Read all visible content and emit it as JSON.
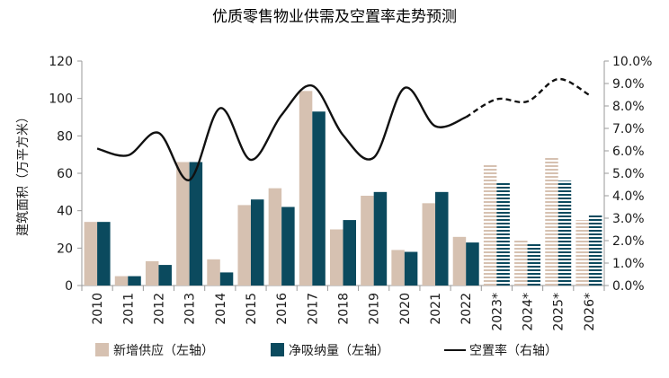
{
  "chart_data": {
    "type": "bar",
    "title": "优质零售物业供需及空置率走势预测",
    "ylabel": "建筑面积（万平方米）",
    "y2label": "",
    "categories": [
      "2010",
      "2011",
      "2012",
      "2013",
      "2014",
      "2015",
      "2016",
      "2017",
      "2018",
      "2019",
      "2020",
      "2021",
      "2022",
      "2023*",
      "2024*",
      "2025*",
      "2026*"
    ],
    "forecast_from_index": 13,
    "ylim": [
      0,
      120
    ],
    "yticks": [
      "0",
      "20",
      "40",
      "60",
      "80",
      "100",
      "120"
    ],
    "y2lim": [
      0,
      0.1
    ],
    "y2ticks": [
      "0.0%",
      "1.0%",
      "2.0%",
      "3.0%",
      "4.0%",
      "5.0%",
      "6.0%",
      "7.0%",
      "8.0%",
      "9.0%",
      "10.0%"
    ],
    "series": [
      {
        "name": "新增供应（左轴）",
        "type": "bar",
        "axis": "left",
        "color": "#d6c1b1",
        "values": [
          34,
          5,
          13,
          66,
          14,
          43,
          52,
          104,
          30,
          48,
          19,
          44,
          26,
          65,
          24,
          69,
          35
        ]
      },
      {
        "name": "净吸纳量（左轴）",
        "type": "bar",
        "axis": "left",
        "color": "#0b4a5e",
        "values": [
          34,
          5,
          11,
          66,
          7,
          46,
          42,
          93,
          35,
          50,
          18,
          50,
          23,
          55,
          23,
          56,
          38
        ]
      },
      {
        "name": "空置率（右轴）",
        "type": "line",
        "axis": "right",
        "color": "#111111",
        "values": [
          6.1,
          5.8,
          6.8,
          4.7,
          7.9,
          5.6,
          7.6,
          8.9,
          6.7,
          5.7,
          8.8,
          7.1,
          7.5,
          8.3,
          8.2,
          9.2,
          8.5
        ]
      }
    ],
    "legend": "bottom",
    "grid": false
  }
}
